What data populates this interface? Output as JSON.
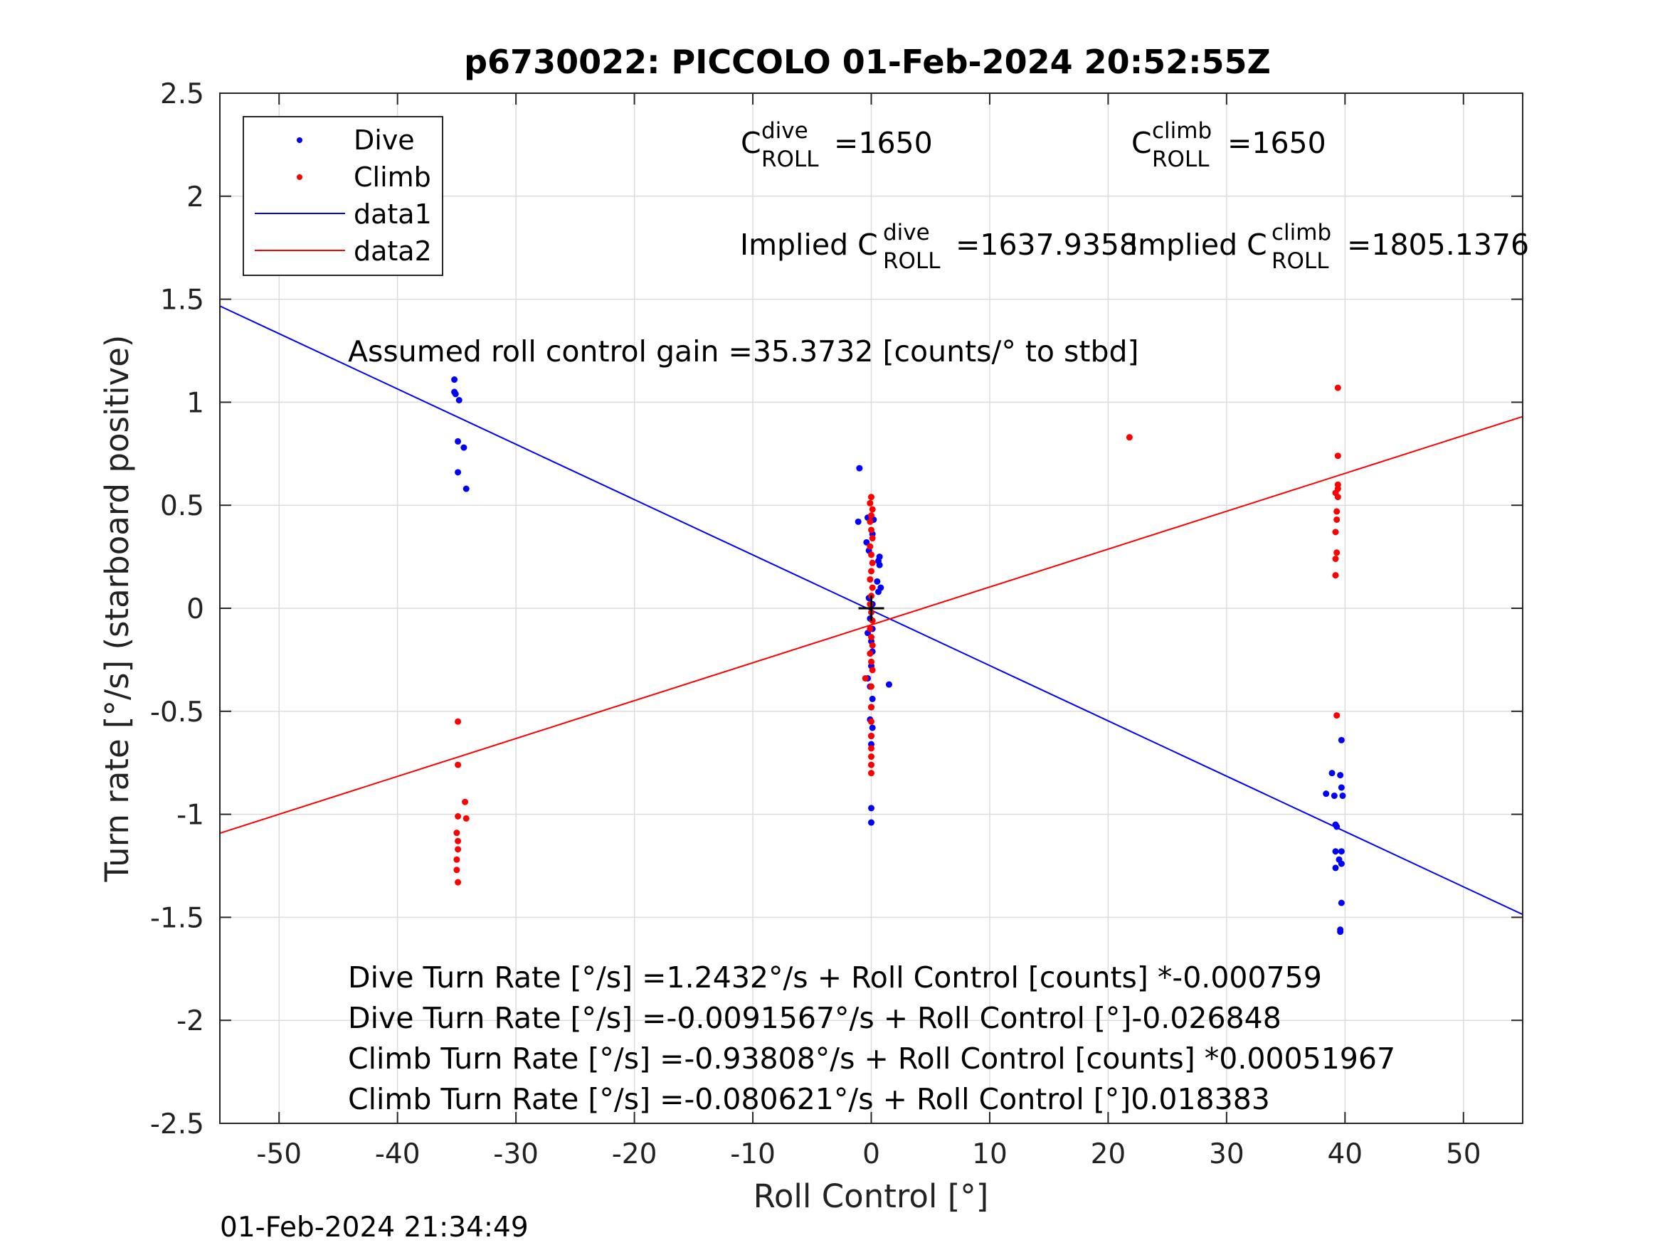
{
  "chart_data": {
    "type": "scatter",
    "title": "p6730022: PICCOLO 01-Feb-2024 20:52:55Z",
    "xlabel": "Roll Control [°]",
    "ylabel": "Turn rate [°/s] (starboard positive)",
    "xlim": [
      -55,
      55
    ],
    "ylim": [
      -2.5,
      2.5
    ],
    "xticks": [
      -50,
      -40,
      -30,
      -20,
      -10,
      0,
      10,
      20,
      30,
      40,
      50
    ],
    "xtick_labels": [
      "-50",
      "-40",
      "-30",
      "-20",
      "-10",
      "0",
      "10",
      "20",
      "30",
      "40",
      "50"
    ],
    "yticks": [
      2.5,
      2,
      1.5,
      1,
      0.5,
      0,
      -0.5,
      -1,
      -1.5,
      -2,
      -2.5
    ],
    "ytick_labels": [
      "2.5",
      "2",
      "1.5",
      "1",
      "0.5",
      "0",
      "-0.5",
      "-1",
      "-1.5",
      "-2",
      "-2.5"
    ],
    "grid": true,
    "legend_position": "top-left",
    "legend": [
      {
        "label": "Dive",
        "kind": "marker",
        "color": "#0000ff"
      },
      {
        "label": "Climb",
        "kind": "marker",
        "color": "#ff0000"
      },
      {
        "label": "data1",
        "kind": "line",
        "color": "#0000ff"
      },
      {
        "label": "data2",
        "kind": "line",
        "color": "#ff0000"
      }
    ],
    "series": [
      {
        "name": "Dive",
        "color": "#0000ff",
        "points": [
          [
            -35.2,
            1.11
          ],
          [
            -35.2,
            1.05
          ],
          [
            -35.1,
            1.04
          ],
          [
            -34.8,
            1.01
          ],
          [
            -34.9,
            0.81
          ],
          [
            -34.4,
            0.78
          ],
          [
            -34.9,
            0.66
          ],
          [
            -34.2,
            0.58
          ],
          [
            -1.0,
            0.68
          ],
          [
            -1.1,
            0.42
          ],
          [
            -0.3,
            0.44
          ],
          [
            0.2,
            0.43
          ],
          [
            -0.4,
            0.32
          ],
          [
            0.1,
            0.36
          ],
          [
            -0.2,
            0.28
          ],
          [
            0.7,
            0.25
          ],
          [
            0.6,
            0.23
          ],
          [
            0.7,
            0.21
          ],
          [
            0.5,
            0.13
          ],
          [
            0.8,
            0.1
          ],
          [
            0.6,
            0.08
          ],
          [
            -0.2,
            0.05
          ],
          [
            0.1,
            0.02
          ],
          [
            -0.1,
            -0.05
          ],
          [
            0.1,
            -0.1
          ],
          [
            -0.3,
            -0.12
          ],
          [
            0.0,
            -0.16
          ],
          [
            0.1,
            -0.21
          ],
          [
            0.0,
            -0.28
          ],
          [
            -0.3,
            -0.34
          ],
          [
            1.5,
            -0.37
          ],
          [
            -0.1,
            -0.38
          ],
          [
            0.1,
            -0.44
          ],
          [
            0.0,
            -0.48
          ],
          [
            -0.1,
            -0.54
          ],
          [
            0.1,
            -0.58
          ],
          [
            0.0,
            -0.62
          ],
          [
            0.0,
            -0.66
          ],
          [
            0.0,
            -0.97
          ],
          [
            0.0,
            -1.04
          ],
          [
            39.7,
            -0.64
          ],
          [
            38.4,
            -0.9
          ],
          [
            38.9,
            -0.8
          ],
          [
            39.1,
            -0.91
          ],
          [
            39.6,
            -0.81
          ],
          [
            39.7,
            -0.87
          ],
          [
            39.8,
            -0.91
          ],
          [
            39.2,
            -1.05
          ],
          [
            39.3,
            -1.06
          ],
          [
            39.2,
            -1.18
          ],
          [
            39.7,
            -1.18
          ],
          [
            39.5,
            -1.22
          ],
          [
            39.7,
            -1.24
          ],
          [
            39.2,
            -1.26
          ],
          [
            39.7,
            -1.43
          ],
          [
            39.6,
            -1.56
          ],
          [
            39.6,
            -1.57
          ]
        ]
      },
      {
        "name": "Climb",
        "color": "#ff0000",
        "points": [
          [
            -34.9,
            -0.55
          ],
          [
            -34.9,
            -0.76
          ],
          [
            -34.3,
            -0.94
          ],
          [
            -34.9,
            -1.01
          ],
          [
            -34.2,
            -1.02
          ],
          [
            -35.0,
            -1.09
          ],
          [
            -34.9,
            -1.13
          ],
          [
            -34.9,
            -1.17
          ],
          [
            -35.0,
            -1.22
          ],
          [
            -35.0,
            -1.27
          ],
          [
            -34.9,
            -1.33
          ],
          [
            21.8,
            0.83
          ],
          [
            39.4,
            1.07
          ],
          [
            39.4,
            0.74
          ],
          [
            39.4,
            0.6
          ],
          [
            39.4,
            0.58
          ],
          [
            39.2,
            0.56
          ],
          [
            39.4,
            0.54
          ],
          [
            39.3,
            0.47
          ],
          [
            39.3,
            0.43
          ],
          [
            39.2,
            0.37
          ],
          [
            39.3,
            0.27
          ],
          [
            39.2,
            0.24
          ],
          [
            39.2,
            0.16
          ],
          [
            39.3,
            -0.52
          ],
          [
            0.0,
            0.54
          ],
          [
            -0.1,
            0.51
          ],
          [
            0.1,
            0.48
          ],
          [
            0.0,
            0.45
          ],
          [
            -0.1,
            0.42
          ],
          [
            0.0,
            0.38
          ],
          [
            0.1,
            0.34
          ],
          [
            -0.1,
            0.3
          ],
          [
            0.0,
            0.26
          ],
          [
            0.1,
            0.22
          ],
          [
            0.0,
            0.18
          ],
          [
            -0.1,
            0.14
          ],
          [
            0.1,
            0.1
          ],
          [
            0.0,
            0.06
          ],
          [
            -0.1,
            0.02
          ],
          [
            0.0,
            -0.02
          ],
          [
            0.1,
            -0.06
          ],
          [
            -0.1,
            -0.1
          ],
          [
            0.0,
            -0.14
          ],
          [
            0.1,
            -0.18
          ],
          [
            -0.1,
            -0.22
          ],
          [
            0.0,
            -0.26
          ],
          [
            0.1,
            -0.3
          ],
          [
            -0.5,
            -0.34
          ],
          [
            0.0,
            -0.38
          ],
          [
            0.0,
            -0.48
          ],
          [
            0.0,
            -0.55
          ],
          [
            0.0,
            -0.62
          ],
          [
            0.0,
            -0.68
          ],
          [
            0.0,
            -0.72
          ],
          [
            0.0,
            -0.76
          ],
          [
            0.0,
            -0.8
          ]
        ]
      }
    ],
    "lines": [
      {
        "name": "data1",
        "color": "#0000ff",
        "x": [
          -55,
          55
        ],
        "y": [
          1.4671,
          -1.4862
        ]
      },
      {
        "name": "data2",
        "color": "#ff0000",
        "x": [
          -55,
          55
        ],
        "y": [
          -1.0917,
          0.9305
        ]
      }
    ],
    "center_marker": {
      "x": 0,
      "y": 0,
      "color": "#000000"
    },
    "annotations": {
      "c_dive_base": "C",
      "c_dive_sup": "dive",
      "c_dive_sub": "ROLL",
      "c_dive_value": "=1650",
      "c_climb_base": "C",
      "c_climb_sup": "climb",
      "c_climb_sub": "ROLL",
      "c_climb_value": "=1650",
      "implied_dive_prefix": "Implied C",
      "implied_dive_sup": "dive",
      "implied_dive_sub": "ROLL",
      "implied_dive_value": "=1637.9358",
      "implied_climb_prefix": "Implied C",
      "implied_climb_sup": "climb",
      "implied_climb_sub": "ROLL",
      "implied_climb_value": "=1805.1376",
      "gain": "Assumed roll control gain =35.3732 [counts/° to stbd]",
      "eq1": "Dive Turn Rate [°/s] =1.2432°/s + Roll Control [counts] *-0.000759",
      "eq2": "Dive Turn Rate [°/s] =-0.0091567°/s + Roll Control [°]-0.026848",
      "eq3": "Climb Turn Rate [°/s] =-0.93808°/s + Roll Control [counts] *0.00051967",
      "eq4": "Climb Turn Rate [°/s] =-0.080621°/s + Roll Control [°]0.018383"
    },
    "timestamp": "01-Feb-2024 21:34:49"
  }
}
